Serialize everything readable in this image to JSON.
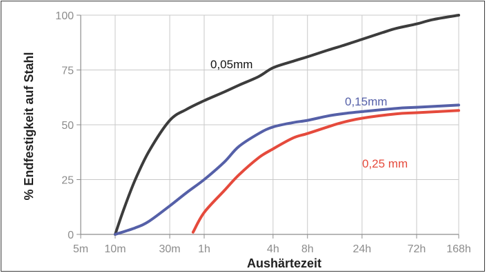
{
  "chart_data": {
    "type": "line",
    "xlabel": "Aushärtezeit",
    "ylabel": "% Endfestigkeit auf Stahl",
    "x_scale": "log",
    "x_unit": "hours",
    "xlim": [
      0.0833,
      168
    ],
    "ylim": [
      0,
      100
    ],
    "grid": true,
    "x_ticks": [
      {
        "value": 0.0833,
        "label": "5m"
      },
      {
        "value": 0.1667,
        "label": "10m"
      },
      {
        "value": 0.5,
        "label": "30m"
      },
      {
        "value": 1,
        "label": "1h"
      },
      {
        "value": 4,
        "label": "4h"
      },
      {
        "value": 8,
        "label": "8h"
      },
      {
        "value": 24,
        "label": "24h"
      },
      {
        "value": 72,
        "label": "72h"
      },
      {
        "value": 168,
        "label": "168h"
      }
    ],
    "y_ticks": [
      {
        "value": 0,
        "label": "0"
      },
      {
        "value": 25,
        "label": "25"
      },
      {
        "value": 50,
        "label": "50"
      },
      {
        "value": 75,
        "label": "75"
      },
      {
        "value": 100,
        "label": "100"
      }
    ],
    "series": [
      {
        "name": "0,05mm",
        "color": "#3c3c3c",
        "x": [
          0.1667,
          0.2,
          0.25,
          0.33,
          0.5,
          0.7,
          1,
          1.5,
          2,
          3,
          4,
          6,
          8,
          12,
          16,
          24,
          36,
          48,
          72,
          100,
          168
        ],
        "y": [
          0,
          12,
          25,
          38,
          52,
          57,
          61,
          65,
          68,
          72,
          76,
          79,
          81,
          84,
          86,
          89,
          92,
          94,
          96,
          98,
          100
        ]
      },
      {
        "name": "0,15mm",
        "color": "#5560a8",
        "x": [
          0.1667,
          0.25,
          0.33,
          0.5,
          0.7,
          1,
          1.5,
          2,
          3,
          4,
          6,
          8,
          12,
          16,
          24,
          48,
          72,
          168
        ],
        "y": [
          0,
          3,
          6,
          13,
          19,
          25,
          33,
          40,
          46,
          49,
          51,
          52,
          54,
          55,
          56,
          57.5,
          58,
          59
        ]
      },
      {
        "name": "0,25 mm",
        "color": "#e54a3c",
        "x": [
          0.8,
          1,
          1.5,
          2,
          3,
          4,
          6,
          8,
          12,
          16,
          24,
          48,
          72,
          168
        ],
        "y": [
          1,
          10,
          20,
          27,
          35,
          39,
          44,
          46,
          49,
          51,
          53,
          55,
          55.5,
          56.5
        ]
      }
    ]
  }
}
